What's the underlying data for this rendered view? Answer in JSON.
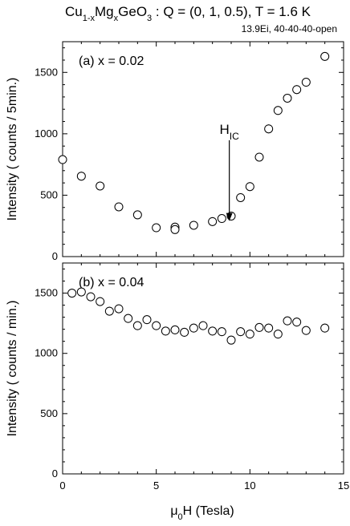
{
  "figure": {
    "title": "Cu1-xMgxGeO3 : Q = (0, 1, 0.5), T = 1.6 K",
    "subtitle": "13.9Ei, 40-40-40-open",
    "xlabel": "μ0H (Tesla)"
  },
  "chart_data": [
    {
      "type": "scatter",
      "panel_label": "(a) x = 0.02",
      "xlabel": "μ0H (Tesla)",
      "ylabel": "Intensity ( counts / 5min.)",
      "xlim": [
        0,
        15
      ],
      "ylim": [
        0,
        1750
      ],
      "xticks": [
        0,
        5,
        10,
        15
      ],
      "yticks": [
        0,
        500,
        1000,
        1500
      ],
      "grid": false,
      "annotation": {
        "text": "H_IC",
        "x": 8.9,
        "y": 1000
      },
      "series": [
        {
          "marker": "open-circle",
          "x": [
            0,
            1,
            2,
            3,
            4,
            5,
            6,
            6,
            7,
            8,
            8.5,
            9,
            9.5,
            10,
            10.5,
            11,
            11.5,
            12,
            12.5,
            13,
            14
          ],
          "y": [
            790,
            655,
            575,
            405,
            340,
            235,
            240,
            220,
            255,
            285,
            310,
            330,
            480,
            570,
            810,
            1040,
            1190,
            1290,
            1360,
            1420,
            1630
          ]
        }
      ]
    },
    {
      "type": "scatter",
      "panel_label": "(b) x = 0.04",
      "xlabel": "μ0H (Tesla)",
      "ylabel": "Intensity ( counts / min.)",
      "xlim": [
        0,
        15
      ],
      "ylim": [
        0,
        1750
      ],
      "xticks": [
        0,
        5,
        10,
        15
      ],
      "yticks": [
        0,
        500,
        1000,
        1500
      ],
      "grid": false,
      "series": [
        {
          "marker": "open-circle",
          "x": [
            0.5,
            1,
            1.5,
            2,
            2.5,
            3,
            3.5,
            4,
            4.5,
            5,
            5.5,
            6,
            6.5,
            7,
            7.5,
            8,
            8.5,
            9,
            9.5,
            10,
            10.5,
            11,
            11.5,
            12,
            12.5,
            13,
            14
          ],
          "y": [
            1500,
            1510,
            1470,
            1430,
            1350,
            1370,
            1290,
            1230,
            1280,
            1230,
            1185,
            1195,
            1175,
            1210,
            1230,
            1185,
            1180,
            1110,
            1180,
            1160,
            1215,
            1210,
            1160,
            1270,
            1260,
            1190,
            1210
          ]
        }
      ]
    }
  ]
}
